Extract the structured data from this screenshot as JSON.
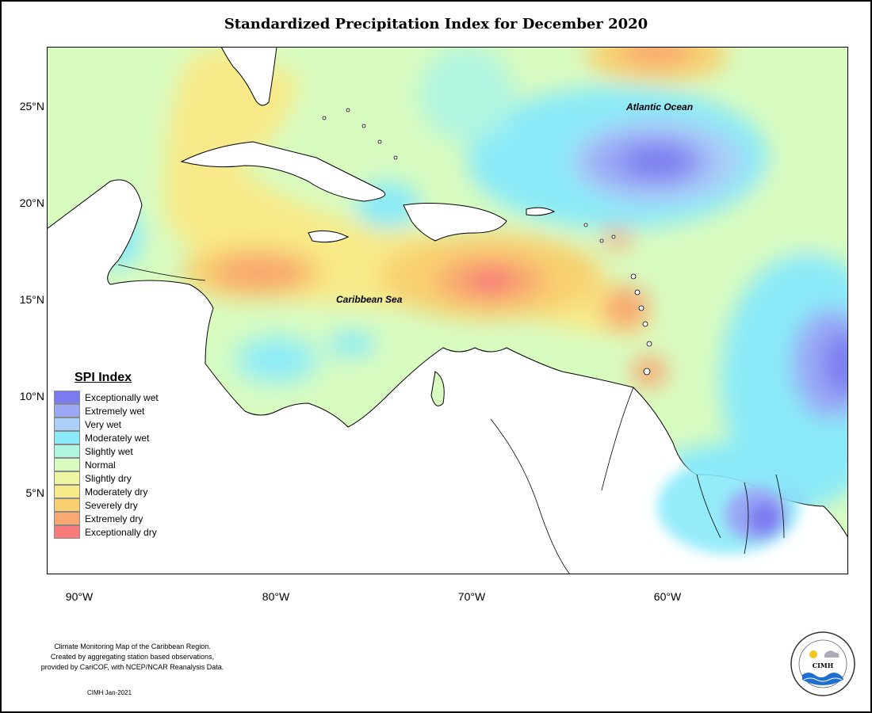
{
  "title": "Standardized Precipitation Index for December 2020",
  "axes": {
    "lat_labels": [
      "25°N",
      "20°N",
      "15°N",
      "10°N",
      "5°N"
    ],
    "lon_labels": [
      "90°W",
      "80°W",
      "70°W",
      "60°W"
    ]
  },
  "map_labels": {
    "ocean_1": "Atlantic Ocean",
    "ocean_2": "Caribbean Sea"
  },
  "legend": {
    "title": "SPI Index",
    "items": [
      {
        "label": "Exceptionally wet",
        "color": "#7b7bf0"
      },
      {
        "label": "Extremely wet",
        "color": "#9aa8f5"
      },
      {
        "label": "Very wet",
        "color": "#aacff8"
      },
      {
        "label": "Moderately wet",
        "color": "#8aeaf8"
      },
      {
        "label": "Slightly wet",
        "color": "#b0f5e0"
      },
      {
        "label": "Normal",
        "color": "#d8fbc0"
      },
      {
        "label": "Slightly dry",
        "color": "#eef5a0"
      },
      {
        "label": "Moderately dry",
        "color": "#f8ea88"
      },
      {
        "label": "Severely dry",
        "color": "#f8d070"
      },
      {
        "label": "Extremely dry",
        "color": "#f8a870"
      },
      {
        "label": "Exceptionally dry",
        "color": "#f87a7a"
      }
    ]
  },
  "footnote": {
    "line1": "Climate Monitoring Map of the Caribbean Region.",
    "line2": "Created by aggregating station based observations,",
    "line3": "provided by CariCOF, with NCEP/NCAR Reanalysis Data."
  },
  "credit": "CIMH Jan-2021",
  "logo": {
    "text": "CIMH",
    "icon": "cimh-logo-icon"
  }
}
